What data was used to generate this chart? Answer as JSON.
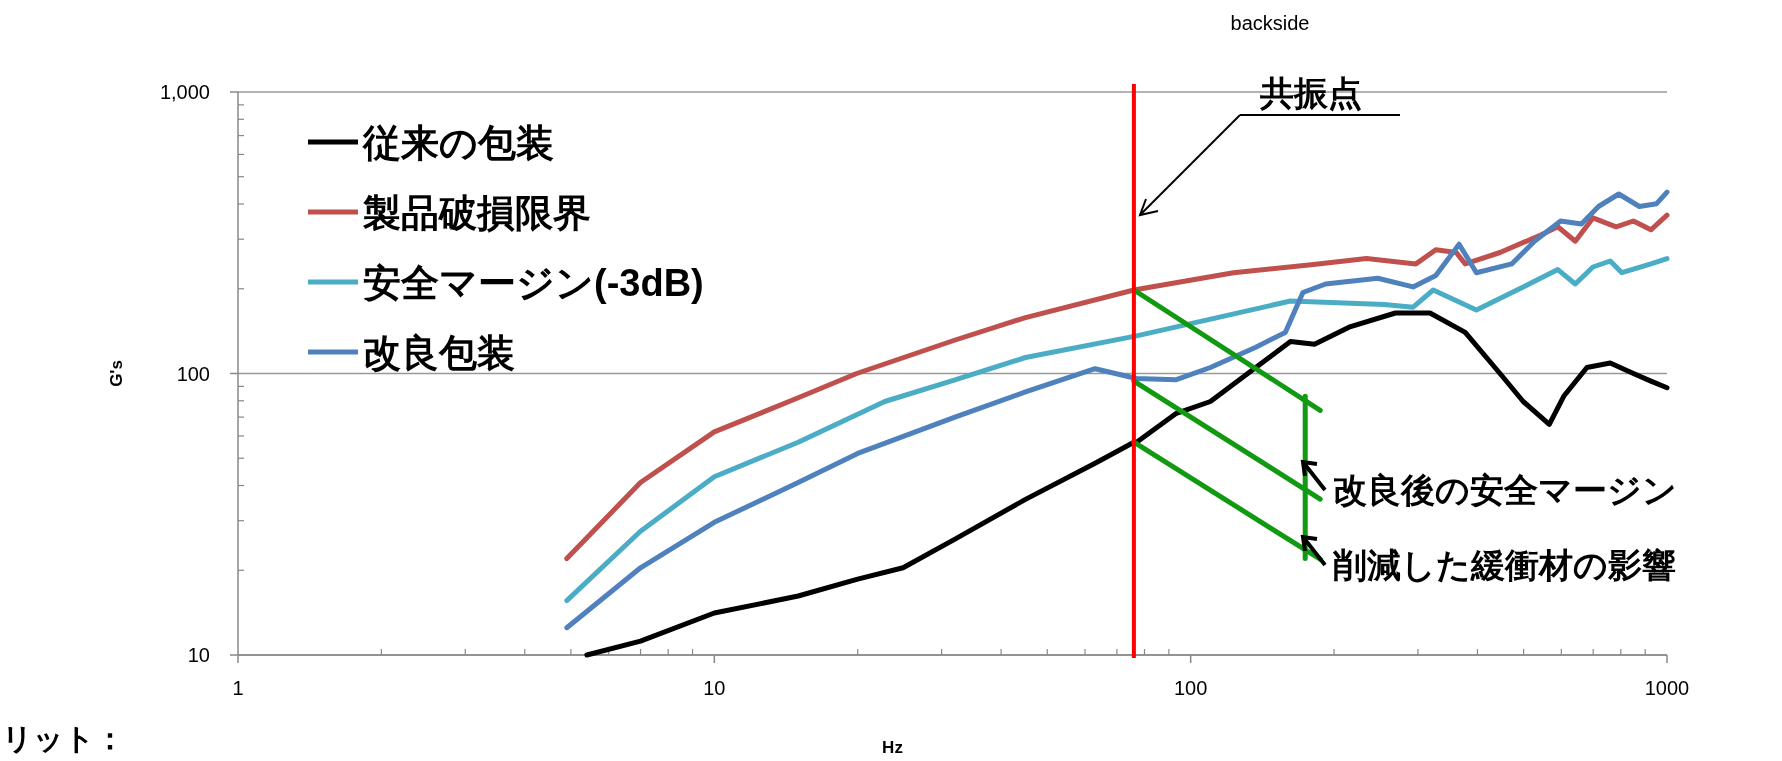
{
  "chart_data": {
    "type": "line",
    "xlabel": "Hz",
    "ylabel": "G's",
    "log": "xy",
    "grid": "y",
    "legend": "top left",
    "line_style": "solid",
    "xlim": [
      1,
      1000
    ],
    "xticks": [
      1,
      10,
      100,
      1000
    ],
    "ylim": [
      10,
      1000
    ],
    "yticks": [
      10,
      100,
      {
        "value": 1000,
        "label": "1,000"
      }
    ],
    "series": [
      {
        "name": "従来の包装",
        "color": "#000000",
        "x": [
          5.4,
          7.0,
          10,
          15,
          20,
          24.9,
          32,
          45,
          63,
          76,
          77,
          93,
          110,
          137,
          162,
          182,
          215,
          269,
          318,
          377,
          446,
          499,
          566,
          607,
          679,
          760,
          850,
          925,
          1000
        ],
        "values": [
          10,
          11.2,
          14.1,
          16.2,
          18.6,
          20.4,
          25.8,
          35.7,
          48,
          57,
          57,
          72,
          79.5,
          105,
          130,
          127,
          146,
          164,
          164,
          140,
          100,
          79.5,
          66,
          83,
          105,
          109,
          100,
          94,
          89
        ]
      },
      {
        "name": "製品破損限界",
        "color": "#c0504d",
        "x": [
          4.9,
          7.0,
          10,
          15,
          19.9,
          31.8,
          45,
          76,
          123,
          181,
          234,
          297,
          327,
          361,
          377,
          446,
          542,
          590,
          642,
          699,
          782,
          850,
          925,
          1000
        ],
        "values": [
          22,
          41,
          62,
          82,
          100,
          131,
          158,
          198,
          228,
          244,
          256,
          245,
          275,
          269,
          245,
          269,
          310,
          332,
          295,
          357,
          332,
          348,
          324,
          365
        ]
      },
      {
        "name": "安全マージン(-3dB)",
        "color": "#4bacc6",
        "x": [
          4.9,
          7.0,
          10,
          15,
          22.8,
          32,
          45,
          77,
          162,
          255,
          293,
          323,
          398,
          499,
          590,
          642,
          699,
          760,
          804,
          925,
          1000
        ],
        "values": [
          15.6,
          27.5,
          43,
          57,
          79.5,
          95,
          114,
          136,
          181,
          176,
          172,
          198,
          168,
          203,
          234,
          208,
          239,
          251,
          228,
          245,
          256
        ]
      },
      {
        "name": "改良包装",
        "color": "#4f81bd",
        "x": [
          4.9,
          7.0,
          10,
          15,
          20,
          32,
          45,
          63,
          77,
          93,
          110,
          137,
          158,
          172,
          192,
          247,
          293,
          327,
          366,
          398,
          472,
          527,
          598,
          661,
          718,
          792,
          875,
          951,
          1000
        ],
        "values": [
          12.5,
          20.4,
          29.6,
          41,
          52,
          70,
          86,
          104,
          96,
          95,
          105,
          124,
          140,
          194,
          208,
          218,
          203,
          223,
          288,
          228,
          245,
          295,
          348,
          340,
          392,
          434,
          392,
          401,
          441
        ]
      },
      {
        "color": "#119911",
        "x": [
          76,
          187
        ],
        "values": [
          198,
          74
        ]
      },
      {
        "color": "#119911",
        "x": [
          76,
          187
        ],
        "values": [
          94,
          35.8
        ]
      },
      {
        "color": "#119911",
        "x": [
          76,
          187
        ],
        "values": [
          57,
          21.9
        ]
      },
      {
        "color": "#119911",
        "x": [
          174,
          174
        ],
        "values": [
          22,
          83
        ]
      }
    ],
    "ref_lines": [
      {
        "axis": "x",
        "value": 76,
        "color": "#ff0000"
      }
    ],
    "annotations": [
      "共振点",
      "改良後の安全マージン",
      "削減した緩衝材の影響",
      "backside",
      "リット："
    ]
  }
}
